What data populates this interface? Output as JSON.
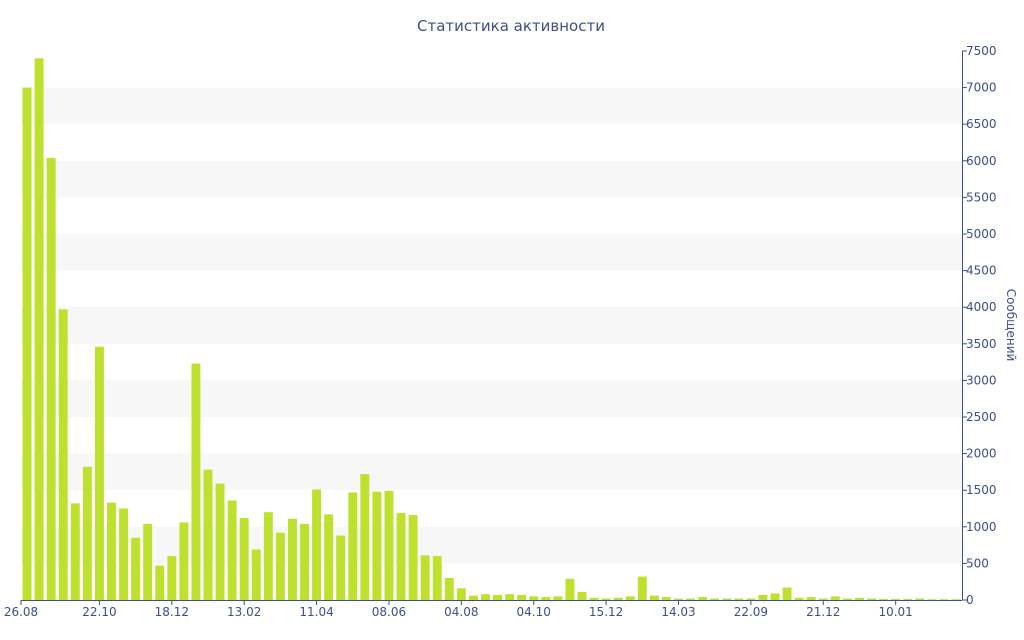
{
  "chart_data": {
    "type": "bar",
    "title": "Статистика активности",
    "xlabel": "",
    "ylabel": "Сообщений",
    "y_axis_side": "right",
    "ylim": [
      0,
      7500
    ],
    "y_ticks": [
      0,
      500,
      1000,
      1500,
      2000,
      2500,
      3000,
      3500,
      4000,
      4500,
      5000,
      5500,
      6000,
      6500,
      7000,
      7500
    ],
    "x_tick_labels": [
      {
        "index": 0,
        "label": "26.08"
      },
      {
        "index": 6,
        "label": "22.10"
      },
      {
        "index": 12,
        "label": "18.12"
      },
      {
        "index": 18,
        "label": "13.02"
      },
      {
        "index": 24,
        "label": "11.04"
      },
      {
        "index": 30,
        "label": "08.06"
      },
      {
        "index": 36,
        "label": "04.08"
      },
      {
        "index": 42,
        "label": "04.10"
      },
      {
        "index": 48,
        "label": "15.12"
      },
      {
        "index": 54,
        "label": "14.03"
      },
      {
        "index": 60,
        "label": "22.09"
      },
      {
        "index": 66,
        "label": "21.12"
      },
      {
        "index": 72,
        "label": "10.01"
      }
    ],
    "grid": "alternating horizontal bands",
    "bar_color": "#bde12e",
    "band_color": "#f7f7f7",
    "text_color": "#3d4f8c",
    "axis_color": "#3d4f8c",
    "values": [
      7000,
      7400,
      6040,
      3970,
      1320,
      1820,
      3460,
      1330,
      1250,
      850,
      1040,
      470,
      600,
      1060,
      3230,
      1780,
      1590,
      1360,
      1120,
      690,
      1200,
      920,
      1110,
      1040,
      1510,
      1170,
      880,
      1470,
      1720,
      1480,
      1490,
      1190,
      1160,
      610,
      600,
      300,
      160,
      60,
      80,
      70,
      80,
      70,
      50,
      40,
      50,
      290,
      110,
      30,
      20,
      30,
      50,
      320,
      60,
      40,
      20,
      20,
      40,
      20,
      20,
      20,
      20,
      70,
      90,
      170,
      30,
      40,
      20,
      50,
      20,
      30,
      20,
      15,
      15,
      15,
      20,
      10,
      10,
      10
    ]
  }
}
